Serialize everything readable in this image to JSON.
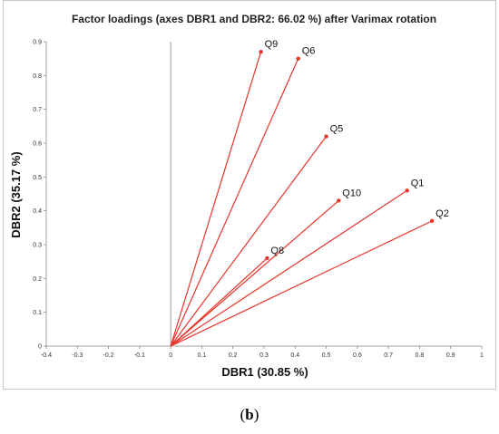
{
  "caption": {
    "prefix": "(",
    "letter": "b",
    "suffix": ")"
  },
  "chart_data": {
    "type": "scatter",
    "title": "Factor loadings (axes DBR1 and DBR2: 66.02 %) after Varimax rotation",
    "xlabel": "DBR1 (30.85 %)",
    "ylabel": "DBR2 (35.17 %)",
    "xlim": [
      -0.4,
      1
    ],
    "ylim": [
      0,
      0.9
    ],
    "xticks": [
      "-0.4",
      "-0.3",
      "-0.2",
      "-0.1",
      "0",
      "0.1",
      "0.2",
      "0.3",
      "0.4",
      "0.5",
      "0.6",
      "0.7",
      "0.8",
      "0.9",
      "1"
    ],
    "yticks": [
      "0",
      "0.1",
      "0.2",
      "0.3",
      "0.4",
      "0.5",
      "0.6",
      "0.7",
      "0.8",
      "0.9"
    ],
    "grid": false,
    "vectors_from_origin": true,
    "line_color": "#e8352b",
    "points": [
      {
        "label": "Q9",
        "x": 0.29,
        "y": 0.87
      },
      {
        "label": "Q6",
        "x": 0.41,
        "y": 0.85
      },
      {
        "label": "Q5",
        "x": 0.5,
        "y": 0.62
      },
      {
        "label": "Q10",
        "x": 0.54,
        "y": 0.43
      },
      {
        "label": "Q1",
        "x": 0.76,
        "y": 0.46
      },
      {
        "label": "Q2",
        "x": 0.84,
        "y": 0.37
      },
      {
        "label": "Q8",
        "x": 0.31,
        "y": 0.26
      }
    ]
  }
}
